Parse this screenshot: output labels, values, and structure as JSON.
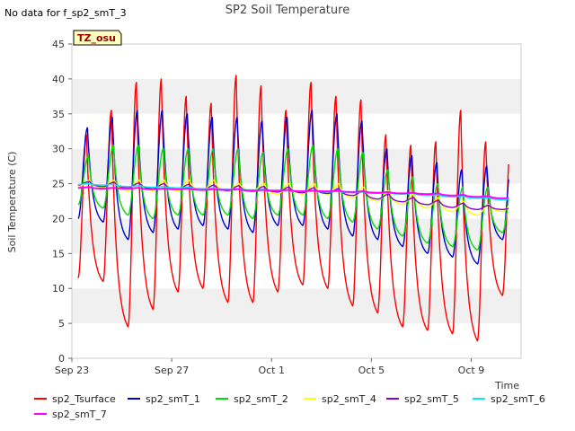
{
  "header": {
    "no_data_note": "No data for f_sp2_smT_3",
    "title": "SP2 Soil Temperature",
    "badge": "TZ_osu"
  },
  "chart_data": {
    "type": "line",
    "title": "SP2 Soil Temperature",
    "xlabel": "Time",
    "ylabel": "Soil Temperature (C)",
    "xlim": [
      "2022-09-23",
      "2022-10-11"
    ],
    "ylim": [
      0,
      45
    ],
    "x_ticks": [
      "Sep 23",
      "Sep 27",
      "Oct 1",
      "Oct 5",
      "Oct 9"
    ],
    "y_ticks": [
      0,
      5,
      10,
      15,
      20,
      25,
      30,
      35,
      40,
      45
    ],
    "grid": "horizontal bands",
    "legend": "bottom",
    "daily_cycles": {
      "days": [
        "2022-09-23",
        "2022-09-24",
        "2022-09-25",
        "2022-09-26",
        "2022-09-27",
        "2022-09-28",
        "2022-09-29",
        "2022-09-30",
        "2022-10-01",
        "2022-10-02",
        "2022-10-03",
        "2022-10-04",
        "2022-10-05",
        "2022-10-06",
        "2022-10-07",
        "2022-10-08",
        "2022-10-09",
        "2022-10-10"
      ],
      "note_hours": "values sampled per day: overnight minimum and afternoon maximum"
    },
    "series": [
      {
        "name": "sp2_Tsurface",
        "color": "#ff0000",
        "min": [
          11.5,
          11.0,
          4.5,
          7.0,
          9.5,
          10.0,
          8.0,
          8.0,
          9.5,
          10.5,
          10.0,
          7.5,
          6.5,
          4.5,
          4.0,
          3.5,
          2.5,
          9.0
        ],
        "max": [
          32.0,
          35.5,
          39.5,
          40.0,
          37.5,
          36.5,
          40.5,
          39.0,
          35.5,
          39.5,
          37.5,
          37.0,
          32.0,
          30.5,
          31.0,
          35.5,
          31.0,
          31.0
        ]
      },
      {
        "name": "sp2_smT_1",
        "color": "#0000cc",
        "min": [
          20.0,
          19.5,
          17.0,
          18.0,
          18.5,
          19.0,
          18.5,
          18.0,
          19.0,
          19.0,
          18.5,
          17.5,
          17.0,
          16.0,
          15.0,
          14.5,
          13.5,
          17.0
        ],
        "max": [
          33.0,
          34.5,
          35.5,
          35.5,
          35.0,
          34.5,
          34.5,
          34.0,
          34.5,
          35.5,
          35.0,
          34.0,
          30.0,
          29.0,
          28.0,
          27.0,
          27.5,
          28.5
        ]
      },
      {
        "name": "sp2_smT_2",
        "color": "#00dd00",
        "min": [
          22.0,
          21.5,
          20.5,
          20.0,
          20.5,
          20.5,
          20.5,
          20.0,
          20.5,
          20.5,
          20.0,
          19.5,
          18.5,
          17.5,
          16.5,
          16.0,
          15.5,
          18.0
        ],
        "max": [
          29.0,
          30.5,
          30.5,
          30.0,
          30.0,
          30.0,
          30.0,
          29.5,
          30.0,
          30.5,
          30.0,
          29.5,
          27.0,
          26.0,
          25.0,
          24.5,
          24.5,
          25.5
        ]
      },
      {
        "name": "sp2_smT_4",
        "color": "#ffff00",
        "min": [
          24.5,
          24.5,
          24.0,
          24.0,
          24.0,
          24.0,
          24.0,
          24.0,
          23.5,
          23.5,
          23.5,
          23.0,
          22.5,
          22.0,
          21.5,
          21.0,
          20.5,
          21.0
        ],
        "max": [
          25.5,
          25.5,
          25.5,
          25.5,
          25.5,
          25.5,
          25.0,
          25.0,
          25.0,
          25.0,
          25.0,
          24.5,
          24.0,
          23.5,
          23.0,
          22.5,
          22.0,
          22.5
        ]
      },
      {
        "name": "sp2_smT_5",
        "color": "#8800cc",
        "min": [
          24.8,
          24.6,
          24.4,
          24.3,
          24.2,
          24.1,
          24.0,
          23.9,
          23.8,
          23.7,
          23.6,
          23.3,
          22.8,
          22.4,
          22.0,
          21.6,
          21.3,
          21.3
        ],
        "max": [
          25.3,
          25.2,
          25.1,
          25.0,
          24.9,
          24.8,
          24.7,
          24.6,
          24.5,
          24.4,
          24.3,
          24.0,
          23.5,
          23.0,
          22.6,
          22.2,
          21.9,
          21.6
        ]
      },
      {
        "name": "sp2_smT_6",
        "color": "#00eeee",
        "min": [
          24.9,
          24.8,
          24.6,
          24.5,
          24.4,
          24.3,
          24.2,
          24.1,
          24.0,
          23.9,
          23.8,
          23.7,
          23.6,
          23.5,
          23.3,
          23.1,
          22.9,
          22.7
        ],
        "max": [
          25.0,
          24.9,
          24.7,
          24.6,
          24.5,
          24.4,
          24.3,
          24.2,
          24.1,
          24.0,
          23.9,
          23.8,
          23.7,
          23.6,
          23.4,
          23.2,
          23.0,
          22.8
        ]
      },
      {
        "name": "sp2_smT_7",
        "color": "#ff00ff",
        "min": [
          24.4,
          24.3,
          24.3,
          24.2,
          24.2,
          24.1,
          24.1,
          24.0,
          24.0,
          23.9,
          23.9,
          23.8,
          23.7,
          23.6,
          23.5,
          23.3,
          23.1,
          22.9
        ],
        "max": [
          24.5,
          24.4,
          24.4,
          24.3,
          24.3,
          24.2,
          24.2,
          24.1,
          24.1,
          24.0,
          24.0,
          23.9,
          23.8,
          23.7,
          23.6,
          23.4,
          23.2,
          23.0
        ]
      }
    ]
  }
}
